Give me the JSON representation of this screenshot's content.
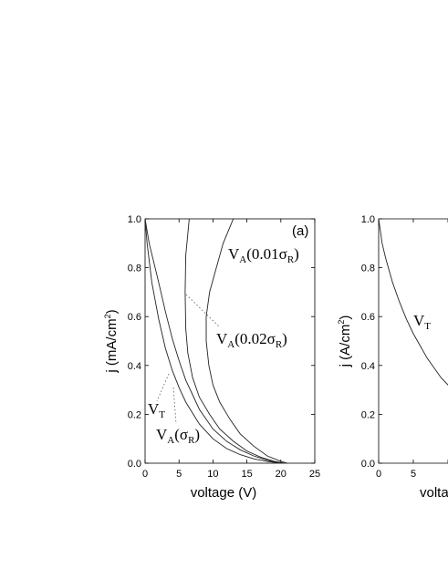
{
  "chart_data": [
    {
      "type": "line",
      "panel_label": "(a)",
      "xlabel": "voltage (V)",
      "ylabel_main": "j (mA/cm",
      "ylabel_sup": "2",
      "ylabel_end": ")",
      "xlim": [
        0,
        25
      ],
      "ylim": [
        0,
        1.0
      ],
      "xticks": [
        0,
        5,
        10,
        15,
        20,
        25
      ],
      "yticks": [
        0.0,
        0.2,
        0.4,
        0.6,
        0.8,
        1.0
      ],
      "series": [
        {
          "x": [
            0,
            0.3,
            1,
            2,
            3,
            4,
            5,
            6,
            8,
            10,
            12,
            14,
            16,
            18,
            20
          ],
          "y": [
            1.0,
            0.9,
            0.74,
            0.59,
            0.47,
            0.38,
            0.31,
            0.25,
            0.16,
            0.1,
            0.06,
            0.035,
            0.018,
            0.007,
            0.0
          ]
        },
        {
          "x": [
            0,
            0.6,
            2,
            3,
            4,
            5,
            6,
            7,
            8,
            10,
            12,
            14,
            16,
            18,
            20
          ],
          "y": [
            1.0,
            0.9,
            0.74,
            0.62,
            0.51,
            0.42,
            0.34,
            0.28,
            0.22,
            0.14,
            0.09,
            0.055,
            0.03,
            0.012,
            0.0
          ]
        },
        {
          "x": [
            6.5,
            6.0,
            5.9,
            6.0,
            6.3,
            7.0,
            8.0,
            9.5,
            11.0,
            13.0,
            15.0,
            17.0,
            19.0,
            20.5
          ],
          "y": [
            1.0,
            0.85,
            0.7,
            0.55,
            0.45,
            0.35,
            0.27,
            0.2,
            0.14,
            0.09,
            0.05,
            0.025,
            0.008,
            0.0
          ]
        },
        {
          "x": [
            13.0,
            11.5,
            10.5,
            9.5,
            9.0,
            9.0,
            9.4,
            10.0,
            11.0,
            12.5,
            14.0,
            16.0,
            18.0,
            20.0,
            21.0
          ],
          "y": [
            1.0,
            0.9,
            0.8,
            0.7,
            0.6,
            0.5,
            0.4,
            0.32,
            0.25,
            0.18,
            0.12,
            0.07,
            0.03,
            0.008,
            0.0
          ]
        }
      ],
      "annotations": [
        {
          "id": "va001",
          "main": "V",
          "sub": "A",
          "rest": "(0.01σ",
          "sub2": "R",
          "end": ")"
        },
        {
          "id": "va002",
          "main": "V",
          "sub": "A",
          "rest": "(0.02σ",
          "sub2": "R",
          "end": ")"
        },
        {
          "id": "vt",
          "main": "V",
          "sub": "T",
          "rest": "",
          "sub2": "",
          "end": ""
        },
        {
          "id": "vasr",
          "main": "V",
          "sub": "A",
          "rest": "(σ",
          "sub2": "R",
          "end": ")"
        }
      ]
    },
    {
      "type": "line",
      "xlabel_partial": "volta",
      "ylabel_main": "j (A/cm",
      "ylabel_sup": "2",
      "ylabel_end": ")",
      "ylim": [
        0,
        1.0
      ],
      "xticks_visible": [
        "0",
        "5",
        "1"
      ],
      "yticks": [
        0.0,
        0.2,
        0.4,
        0.6,
        0.8,
        1.0
      ],
      "series": [
        {
          "x": [
            0,
            0.5,
            1,
            2,
            3,
            4,
            5,
            6,
            7,
            8,
            9,
            10,
            10.5
          ],
          "y": [
            1.0,
            0.9,
            0.84,
            0.74,
            0.66,
            0.59,
            0.53,
            0.48,
            0.43,
            0.39,
            0.35,
            0.32,
            0.3
          ]
        }
      ],
      "annotations": [
        {
          "id": "vt2",
          "main": "V",
          "sub": "T"
        }
      ]
    }
  ]
}
